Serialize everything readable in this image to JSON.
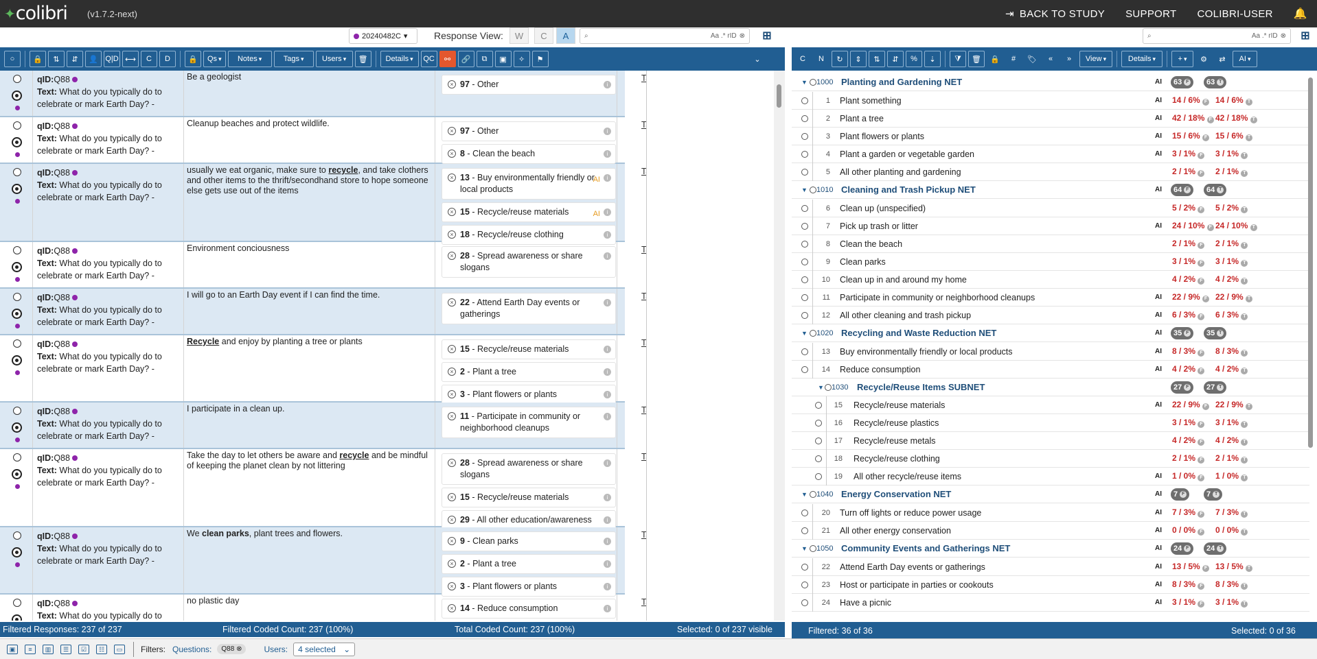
{
  "app": {
    "name": "colibri",
    "version": "(v1.7.2-next)"
  },
  "topnav": {
    "back": "BACK TO STUDY",
    "support": "SUPPORT",
    "user": "COLIBRI-USER"
  },
  "controls": {
    "dataset": "20240482C",
    "response_view_label": "Response View:",
    "rv_w": "W",
    "rv_c": "C",
    "rv_a": "A",
    "search_opts": "Aa  .*  rID"
  },
  "left_toolbar": {
    "qs": "Qs",
    "notes": "Notes",
    "tags": "Tags",
    "users": "Users",
    "details": "Details",
    "qc": "QC",
    "qid": "Q|D",
    "c": "C",
    "d": "D",
    "o": "O"
  },
  "right_toolbar": {
    "c": "C",
    "n": "N",
    "view": "View",
    "details": "Details",
    "plus": "+",
    "ai": "AI",
    "hash": "#"
  },
  "rows": [
    {
      "qid": "Q88",
      "text": "What do you typically do to celebrate or mark Earth Day? -",
      "resp": "Be a geologist",
      "codes": [
        {
          "n": "97",
          "label": "Other",
          "ai": false
        }
      ]
    },
    {
      "qid": "Q88",
      "text": "What do you typically do to celebrate or mark Earth Day? -",
      "resp": "Cleanup beaches and protect wildlife.",
      "codes": [
        {
          "n": "97",
          "label": "Other",
          "ai": false
        },
        {
          "n": "8",
          "label": "Clean the beach",
          "ai": false
        }
      ]
    },
    {
      "qid": "Q88",
      "text": "What do you typically do to celebrate or mark Earth Day? -",
      "resp_a": "usually we eat organic, make sure to ",
      "resp_kw": "recycle",
      "resp_b": ", and take clothers and other items to the thrift/secondhand store to hope someone else gets use out of the items",
      "codes": [
        {
          "n": "13",
          "label": "Buy environmentally friendly or local products",
          "ai": true
        },
        {
          "n": "15",
          "label": "Recycle/reuse materials",
          "ai": true
        },
        {
          "n": "18",
          "label": "Recycle/reuse clothing",
          "ai": false
        }
      ]
    },
    {
      "qid": "Q88",
      "text": "What do you typically do to celebrate or mark Earth Day? -",
      "resp": "Environment conciousness",
      "codes": [
        {
          "n": "28",
          "label": "Spread awareness or share slogans",
          "ai": false
        }
      ]
    },
    {
      "qid": "Q88",
      "text": "What do you typically do to celebrate or mark Earth Day? -",
      "resp": "I will go to an Earth Day event if I can find the time.",
      "codes": [
        {
          "n": "22",
          "label": "Attend Earth Day events or gatherings",
          "ai": false
        }
      ]
    },
    {
      "qid": "Q88",
      "text": "What do you typically do to celebrate or mark Earth Day? -",
      "resp_kw": "Recycle",
      "resp_b": " and enjoy by planting a tree or plants",
      "codes": [
        {
          "n": "15",
          "label": "Recycle/reuse materials",
          "ai": false
        },
        {
          "n": "2",
          "label": "Plant a tree",
          "ai": false
        },
        {
          "n": "3",
          "label": "Plant flowers or plants",
          "ai": false
        }
      ]
    },
    {
      "qid": "Q88",
      "text": "What do you typically do to celebrate or mark Earth Day? -",
      "resp": "I participate in a clean up.",
      "codes": [
        {
          "n": "11",
          "label": "Participate in community or neighborhood cleanups",
          "ai": false
        }
      ]
    },
    {
      "qid": "Q88",
      "text": "What do you typically do to celebrate or mark Earth Day? -",
      "resp_a": "Take the day to let others be aware and ",
      "resp_kw": "recycle",
      "resp_b": " and be mindful of keeping the planet clean by not littering",
      "codes": [
        {
          "n": "28",
          "label": "Spread awareness or share slogans",
          "ai": false
        },
        {
          "n": "15",
          "label": "Recycle/reuse materials",
          "ai": false
        },
        {
          "n": "29",
          "label": "All other education/awareness",
          "ai": false
        }
      ]
    },
    {
      "qid": "Q88",
      "text": "What do you typically do to celebrate or mark Earth Day? -",
      "resp_a": "We ",
      "resp_bold": "clean parks",
      "resp_b": ", plant trees and flowers.",
      "codes": [
        {
          "n": "9",
          "label": "Clean parks",
          "ai": false
        },
        {
          "n": "2",
          "label": "Plant a tree",
          "ai": false
        },
        {
          "n": "3",
          "label": "Plant flowers or plants",
          "ai": false
        }
      ]
    },
    {
      "qid": "Q88",
      "text": "What do you typically do to",
      "resp": "no plastic day",
      "codes": [
        {
          "n": "14",
          "label": "Reduce consumption",
          "ai": false
        }
      ]
    }
  ],
  "row_links": {
    "tags": "Tags",
    "notes": "Notes",
    "qid_label": "qID:",
    "text_label": "Text:"
  },
  "status_left": {
    "filtered": "Filtered Responses: 237 of 237",
    "coded": "Filtered Coded Count: 237 (100%)",
    "total": "Total Coded Count: 237 (100%)",
    "selected": "Selected: 0 of 237 visible"
  },
  "status_right": {
    "filtered": "Filtered: 36 of 36",
    "selected": "Selected: 0 of 36"
  },
  "filters": {
    "label": "Filters:",
    "questions_label": "Questions:",
    "questions_value": "Q88",
    "users_label": "Users:",
    "users_value": "4 selected"
  },
  "tree": [
    {
      "type": "net",
      "num": "1000",
      "label": "Planting and Gardening NET",
      "ai": "AI",
      "f": "63",
      "t": "63"
    },
    {
      "type": "item",
      "num": "1",
      "label": "Plant something",
      "ai": "AI",
      "f": "14 / 6%",
      "t": "14 / 6%"
    },
    {
      "type": "item",
      "num": "2",
      "label": "Plant a tree",
      "ai": "AI",
      "f": "42 / 18%",
      "t": "42 / 18%"
    },
    {
      "type": "item",
      "num": "3",
      "label": "Plant flowers or plants",
      "ai": "AI",
      "f": "15 / 6%",
      "t": "15 / 6%"
    },
    {
      "type": "item",
      "num": "4",
      "label": "Plant a garden or vegetable garden",
      "ai": "AI",
      "f": "3 / 1%",
      "t": "3 / 1%"
    },
    {
      "type": "item",
      "num": "5",
      "label": "All other planting and gardening",
      "ai": "",
      "f": "2 / 1%",
      "t": "2 / 1%"
    },
    {
      "type": "net",
      "num": "1010",
      "label": "Cleaning and Trash Pickup NET",
      "ai": "AI",
      "f": "64",
      "t": "64"
    },
    {
      "type": "item",
      "num": "6",
      "label": "Clean up (unspecified)",
      "ai": "",
      "f": "5 / 2%",
      "t": "5 / 2%"
    },
    {
      "type": "item",
      "num": "7",
      "label": "Pick up trash or litter",
      "ai": "AI",
      "f": "24 / 10%",
      "t": "24 / 10%"
    },
    {
      "type": "item",
      "num": "8",
      "label": "Clean the beach",
      "ai": "",
      "f": "2 / 1%",
      "t": "2 / 1%"
    },
    {
      "type": "item",
      "num": "9",
      "label": "Clean parks",
      "ai": "",
      "f": "3 / 1%",
      "t": "3 / 1%"
    },
    {
      "type": "item",
      "num": "10",
      "label": "Clean up in and around my home",
      "ai": "",
      "f": "4 / 2%",
      "t": "4 / 2%"
    },
    {
      "type": "item",
      "num": "11",
      "label": "Participate in community or neighborhood cleanups",
      "ai": "AI",
      "f": "22 / 9%",
      "t": "22 / 9%"
    },
    {
      "type": "item",
      "num": "12",
      "label": "All other cleaning and trash pickup",
      "ai": "AI",
      "f": "6 / 3%",
      "t": "6 / 3%"
    },
    {
      "type": "net",
      "num": "1020",
      "label": "Recycling and Waste Reduction NET",
      "ai": "AI",
      "f": "35",
      "t": "35"
    },
    {
      "type": "item",
      "num": "13",
      "label": "Buy environmentally friendly or local products",
      "ai": "AI",
      "f": "8 / 3%",
      "t": "8 / 3%"
    },
    {
      "type": "item",
      "num": "14",
      "label": "Reduce consumption",
      "ai": "AI",
      "f": "4 / 2%",
      "t": "4 / 2%"
    },
    {
      "type": "subnet",
      "num": "1030",
      "label": "Recycle/Reuse Items SUBNET",
      "ai": "",
      "f": "27",
      "t": "27"
    },
    {
      "type": "subitem",
      "num": "15",
      "label": "Recycle/reuse materials",
      "ai": "AI",
      "f": "22 / 9%",
      "t": "22 / 9%"
    },
    {
      "type": "subitem",
      "num": "16",
      "label": "Recycle/reuse plastics",
      "ai": "",
      "f": "3 / 1%",
      "t": "3 / 1%"
    },
    {
      "type": "subitem",
      "num": "17",
      "label": "Recycle/reuse metals",
      "ai": "",
      "f": "4 / 2%",
      "t": "4 / 2%"
    },
    {
      "type": "subitem",
      "num": "18",
      "label": "Recycle/reuse clothing",
      "ai": "",
      "f": "2 / 1%",
      "t": "2 / 1%"
    },
    {
      "type": "subitem",
      "num": "19",
      "label": "All other recycle/reuse items",
      "ai": "AI",
      "f": "1 / 0%",
      "t": "1 / 0%"
    },
    {
      "type": "net",
      "num": "1040",
      "label": "Energy Conservation NET",
      "ai": "AI",
      "f": "7",
      "t": "7"
    },
    {
      "type": "item",
      "num": "20",
      "label": "Turn off lights or reduce power usage",
      "ai": "AI",
      "f": "7 / 3%",
      "t": "7 / 3%"
    },
    {
      "type": "item",
      "num": "21",
      "label": "All other energy conservation",
      "ai": "AI",
      "f": "0 / 0%",
      "t": "0 / 0%"
    },
    {
      "type": "net",
      "num": "1050",
      "label": "Community Events and Gatherings NET",
      "ai": "AI",
      "f": "24",
      "t": "24"
    },
    {
      "type": "item",
      "num": "22",
      "label": "Attend Earth Day events or gatherings",
      "ai": "AI",
      "f": "13 / 5%",
      "t": "13 / 5%"
    },
    {
      "type": "item",
      "num": "23",
      "label": "Host or participate in parties or cookouts",
      "ai": "AI",
      "f": "8 / 3%",
      "t": "8 / 3%"
    },
    {
      "type": "item",
      "num": "24",
      "label": "Have a picnic",
      "ai": "AI",
      "f": "3 / 1%",
      "t": "3 / 1%"
    }
  ],
  "badge_letters": {
    "f": "F",
    "t": "T"
  }
}
